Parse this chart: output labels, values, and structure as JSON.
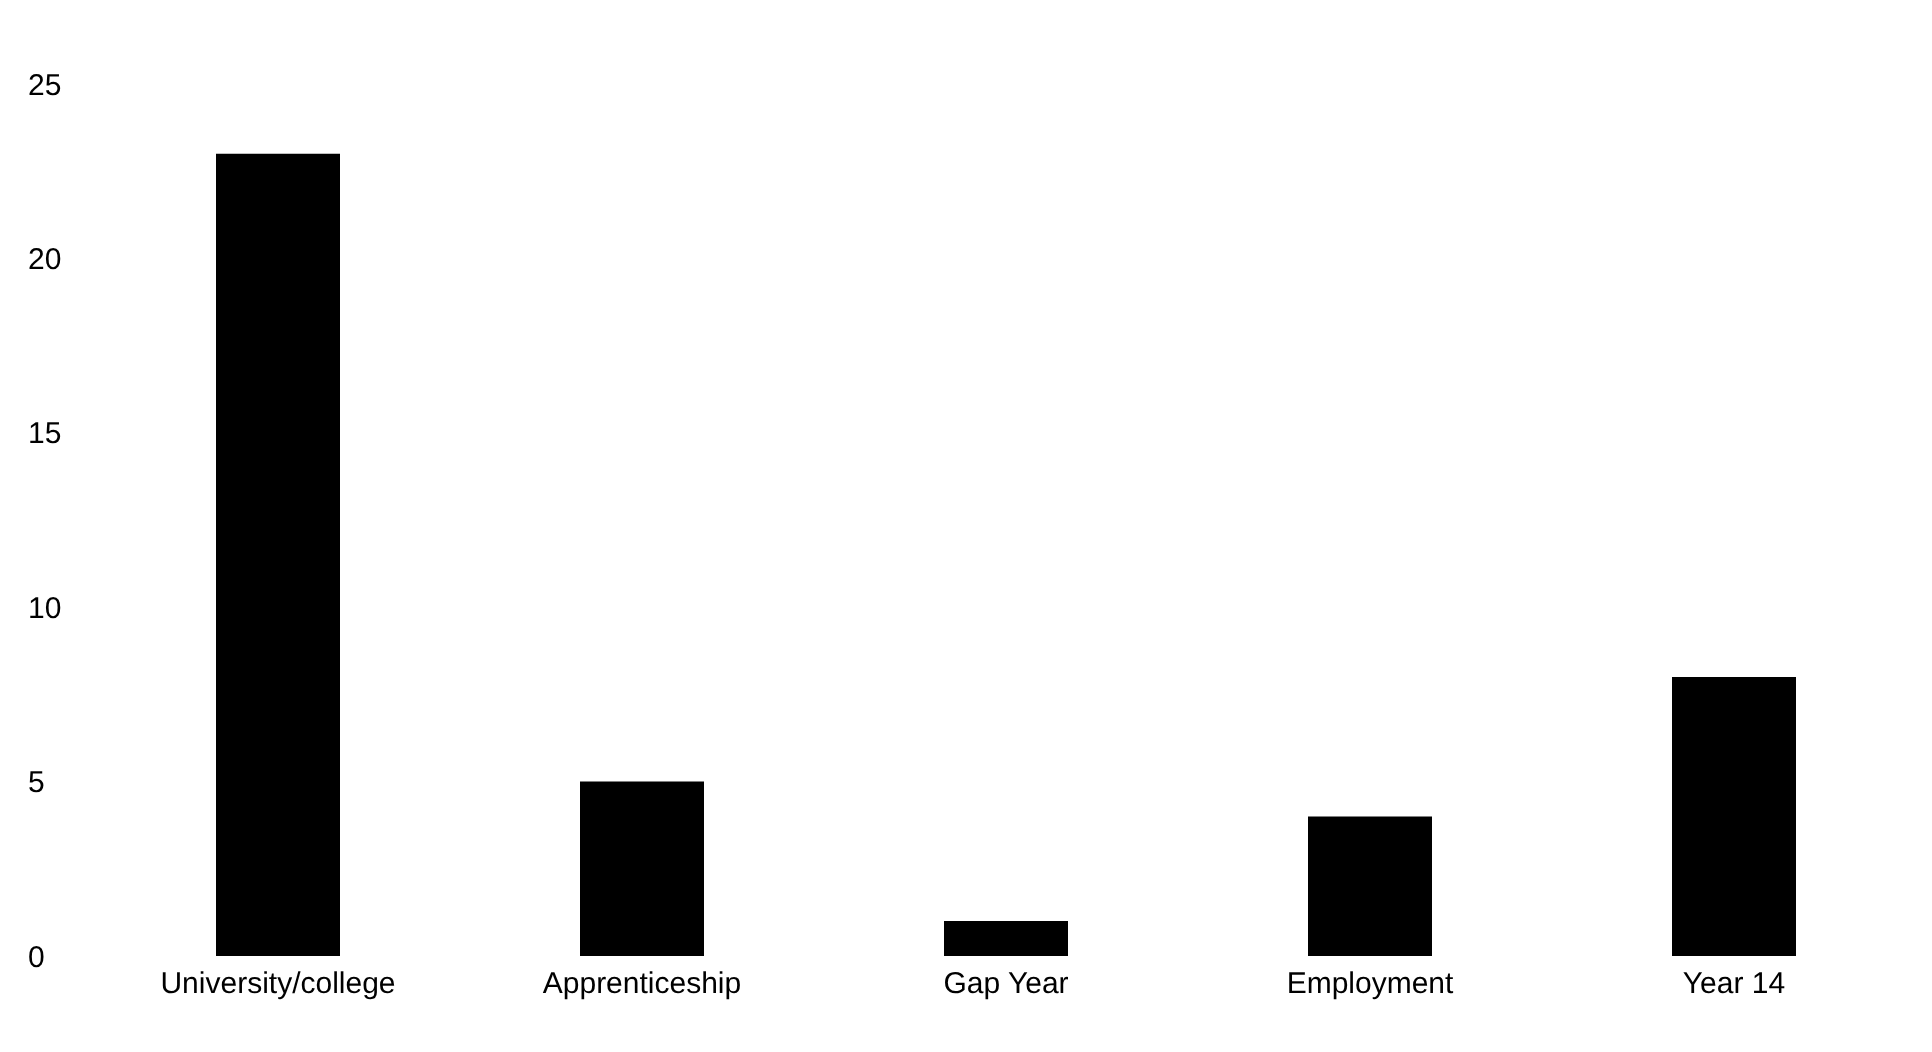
{
  "chart_data": {
    "type": "bar",
    "categories": [
      "University/college",
      "Apprenticeship",
      "Gap Year",
      "Employment",
      "Year 14"
    ],
    "values": [
      23,
      5,
      1,
      4,
      8
    ],
    "color": "#000000",
    "ylim": [
      0,
      25
    ],
    "yticks": [
      0,
      5,
      10,
      15,
      20,
      25
    ],
    "grid": false,
    "legend": false
  }
}
